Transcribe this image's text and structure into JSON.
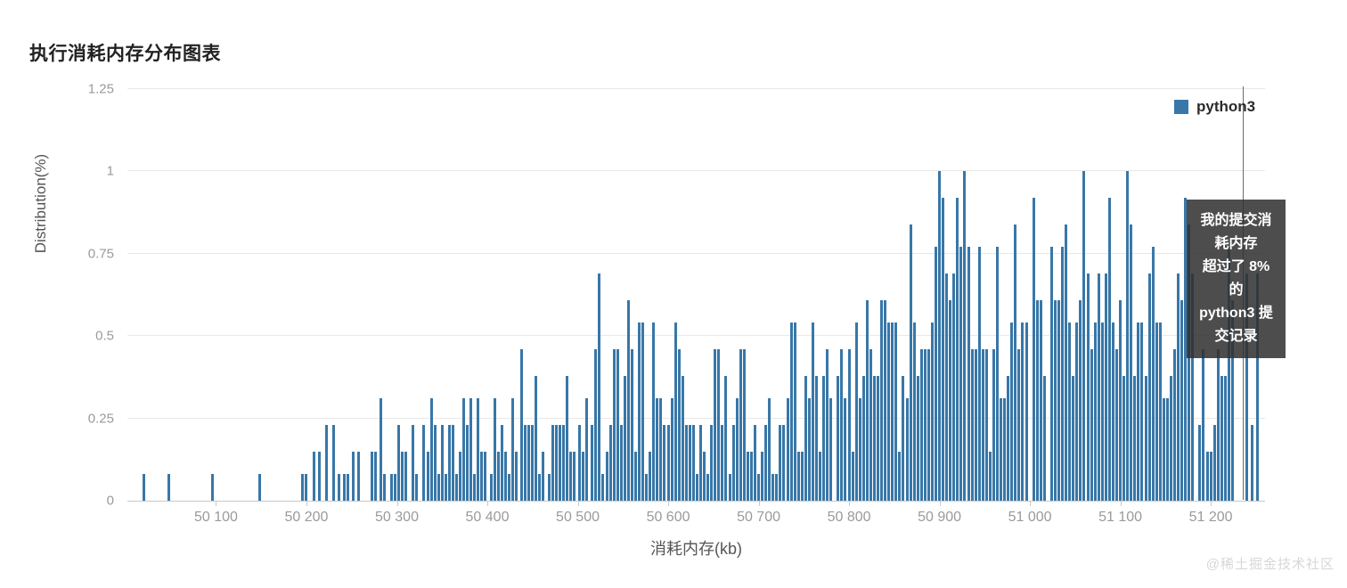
{
  "title": "执行消耗内存分布图表",
  "legend": {
    "label": "python3",
    "color": "#3877a8"
  },
  "tooltip": {
    "text": "我的提交消\n耗内存\n超过了 8%\n的\npython3 提\n交记录"
  },
  "watermark": "@稀土掘金技术社区",
  "chart_data": {
    "type": "bar",
    "title": "执行消耗内存分布图表",
    "xlabel": "消耗内存(kb)",
    "ylabel": "Distribution(%)",
    "series_name": "python3",
    "bar_color": "#3877a8",
    "grid": true,
    "legend_position": "top-right",
    "xlim": [
      50002,
      51260
    ],
    "ylim": [
      0,
      1.25
    ],
    "yticks": [
      0,
      0.25,
      0.5,
      0.75,
      1,
      1.25
    ],
    "ytick_labels": [
      "0",
      "0.25",
      "0.5",
      "0.75",
      "1",
      "1.25"
    ],
    "xticks": [
      {
        "value": 50100,
        "label": "50 100"
      },
      {
        "value": 50200,
        "label": "50 200"
      },
      {
        "value": 50300,
        "label": "50 300"
      },
      {
        "value": 50400,
        "label": "50 400"
      },
      {
        "value": 50500,
        "label": "50 500"
      },
      {
        "value": 50600,
        "label": "50 600"
      },
      {
        "value": 50700,
        "label": "50 700"
      },
      {
        "value": 50800,
        "label": "50 800"
      },
      {
        "value": 50900,
        "label": "50 900"
      },
      {
        "value": 51000,
        "label": "51 000"
      },
      {
        "value": 51100,
        "label": "51 100"
      },
      {
        "value": 51200,
        "label": "51 200"
      }
    ],
    "bars": [
      [
        50020,
        0.08
      ],
      [
        50048,
        0.08
      ],
      [
        50096,
        0.08
      ],
      [
        50148,
        0.08
      ],
      [
        50196,
        0.08
      ],
      [
        50200,
        0.08
      ],
      [
        50208,
        0.15
      ],
      [
        50214,
        0.15
      ],
      [
        50222,
        0.23
      ],
      [
        50230,
        0.23
      ],
      [
        50236,
        0.08
      ],
      [
        50242,
        0.08
      ],
      [
        50246,
        0.08
      ],
      [
        50252,
        0.15
      ],
      [
        50258,
        0.15
      ],
      [
        50272,
        0.15
      ],
      [
        50276,
        0.15
      ],
      [
        50282,
        0.31
      ],
      [
        50286,
        0.08
      ],
      [
        50294,
        0.08
      ],
      [
        50298,
        0.08
      ],
      [
        50302,
        0.23
      ],
      [
        50306,
        0.15
      ],
      [
        50310,
        0.15
      ],
      [
        50318,
        0.23
      ],
      [
        50322,
        0.08
      ],
      [
        50330,
        0.23
      ],
      [
        50334,
        0.15
      ],
      [
        50338,
        0.31
      ],
      [
        50342,
        0.23
      ],
      [
        50346,
        0.08
      ],
      [
        50350,
        0.23
      ],
      [
        50354,
        0.08
      ],
      [
        50358,
        0.23
      ],
      [
        50362,
        0.23
      ],
      [
        50366,
        0.08
      ],
      [
        50370,
        0.15
      ],
      [
        50374,
        0.31
      ],
      [
        50378,
        0.23
      ],
      [
        50382,
        0.31
      ],
      [
        50386,
        0.08
      ],
      [
        50390,
        0.31
      ],
      [
        50394,
        0.15
      ],
      [
        50398,
        0.15
      ],
      [
        50404,
        0.08
      ],
      [
        50408,
        0.31
      ],
      [
        50412,
        0.15
      ],
      [
        50416,
        0.23
      ],
      [
        50420,
        0.15
      ],
      [
        50424,
        0.08
      ],
      [
        50428,
        0.31
      ],
      [
        50432,
        0.15
      ],
      [
        50438,
        0.46
      ],
      [
        50442,
        0.23
      ],
      [
        50446,
        0.23
      ],
      [
        50450,
        0.23
      ],
      [
        50454,
        0.38
      ],
      [
        50458,
        0.08
      ],
      [
        50462,
        0.15
      ],
      [
        50468,
        0.08
      ],
      [
        50472,
        0.23
      ],
      [
        50476,
        0.23
      ],
      [
        50480,
        0.23
      ],
      [
        50484,
        0.23
      ],
      [
        50488,
        0.38
      ],
      [
        50492,
        0.15
      ],
      [
        50496,
        0.15
      ],
      [
        50502,
        0.23
      ],
      [
        50506,
        0.15
      ],
      [
        50510,
        0.31
      ],
      [
        50516,
        0.23
      ],
      [
        50520,
        0.46
      ],
      [
        50524,
        0.69
      ],
      [
        50528,
        0.08
      ],
      [
        50532,
        0.15
      ],
      [
        50536,
        0.23
      ],
      [
        50540,
        0.46
      ],
      [
        50544,
        0.46
      ],
      [
        50548,
        0.23
      ],
      [
        50552,
        0.38
      ],
      [
        50556,
        0.61
      ],
      [
        50560,
        0.46
      ],
      [
        50564,
        0.15
      ],
      [
        50568,
        0.54
      ],
      [
        50572,
        0.54
      ],
      [
        50576,
        0.08
      ],
      [
        50580,
        0.15
      ],
      [
        50584,
        0.54
      ],
      [
        50588,
        0.31
      ],
      [
        50592,
        0.31
      ],
      [
        50596,
        0.23
      ],
      [
        50600,
        0.23
      ],
      [
        50604,
        0.31
      ],
      [
        50608,
        0.54
      ],
      [
        50612,
        0.46
      ],
      [
        50616,
        0.38
      ],
      [
        50620,
        0.23
      ],
      [
        50624,
        0.23
      ],
      [
        50628,
        0.23
      ],
      [
        50632,
        0.08
      ],
      [
        50636,
        0.23
      ],
      [
        50640,
        0.15
      ],
      [
        50644,
        0.08
      ],
      [
        50648,
        0.23
      ],
      [
        50652,
        0.46
      ],
      [
        50656,
        0.46
      ],
      [
        50660,
        0.23
      ],
      [
        50664,
        0.38
      ],
      [
        50668,
        0.08
      ],
      [
        50672,
        0.23
      ],
      [
        50676,
        0.31
      ],
      [
        50680,
        0.46
      ],
      [
        50684,
        0.46
      ],
      [
        50688,
        0.15
      ],
      [
        50692,
        0.15
      ],
      [
        50696,
        0.23
      ],
      [
        50700,
        0.08
      ],
      [
        50704,
        0.15
      ],
      [
        50708,
        0.23
      ],
      [
        50712,
        0.31
      ],
      [
        50716,
        0.08
      ],
      [
        50720,
        0.08
      ],
      [
        50724,
        0.23
      ],
      [
        50728,
        0.23
      ],
      [
        50732,
        0.31
      ],
      [
        50736,
        0.54
      ],
      [
        50740,
        0.54
      ],
      [
        50744,
        0.15
      ],
      [
        50748,
        0.15
      ],
      [
        50752,
        0.38
      ],
      [
        50756,
        0.31
      ],
      [
        50760,
        0.54
      ],
      [
        50764,
        0.38
      ],
      [
        50768,
        0.15
      ],
      [
        50772,
        0.38
      ],
      [
        50776,
        0.46
      ],
      [
        50780,
        0.31
      ],
      [
        50788,
        0.38
      ],
      [
        50792,
        0.46
      ],
      [
        50796,
        0.31
      ],
      [
        50800,
        0.46
      ],
      [
        50804,
        0.15
      ],
      [
        50808,
        0.54
      ],
      [
        50812,
        0.31
      ],
      [
        50816,
        0.38
      ],
      [
        50820,
        0.61
      ],
      [
        50824,
        0.46
      ],
      [
        50828,
        0.38
      ],
      [
        50832,
        0.38
      ],
      [
        50836,
        0.61
      ],
      [
        50840,
        0.61
      ],
      [
        50844,
        0.54
      ],
      [
        50848,
        0.54
      ],
      [
        50852,
        0.54
      ],
      [
        50856,
        0.15
      ],
      [
        50860,
        0.38
      ],
      [
        50864,
        0.31
      ],
      [
        50868,
        0.84
      ],
      [
        50872,
        0.54
      ],
      [
        50876,
        0.38
      ],
      [
        50880,
        0.46
      ],
      [
        50884,
        0.46
      ],
      [
        50888,
        0.46
      ],
      [
        50892,
        0.54
      ],
      [
        50896,
        0.77
      ],
      [
        50900,
        1
      ],
      [
        50904,
        0.92
      ],
      [
        50908,
        0.69
      ],
      [
        50912,
        0.61
      ],
      [
        50916,
        0.69
      ],
      [
        50920,
        0.92
      ],
      [
        50924,
        0.77
      ],
      [
        50928,
        1
      ],
      [
        50932,
        0.77
      ],
      [
        50936,
        0.46
      ],
      [
        50940,
        0.46
      ],
      [
        50944,
        0.77
      ],
      [
        50948,
        0.46
      ],
      [
        50952,
        0.46
      ],
      [
        50956,
        0.15
      ],
      [
        50960,
        0.46
      ],
      [
        50964,
        0.77
      ],
      [
        50968,
        0.31
      ],
      [
        50972,
        0.31
      ],
      [
        50976,
        0.38
      ],
      [
        50980,
        0.54
      ],
      [
        50984,
        0.84
      ],
      [
        50988,
        0.46
      ],
      [
        50992,
        0.54
      ],
      [
        50996,
        0.54
      ],
      [
        51004,
        0.92
      ],
      [
        51008,
        0.61
      ],
      [
        51012,
        0.61
      ],
      [
        51016,
        0.38
      ],
      [
        51024,
        0.77
      ],
      [
        51028,
        0.61
      ],
      [
        51032,
        0.61
      ],
      [
        51036,
        0.77
      ],
      [
        51040,
        0.84
      ],
      [
        51044,
        0.54
      ],
      [
        51048,
        0.38
      ],
      [
        51052,
        0.54
      ],
      [
        51056,
        0.61
      ],
      [
        51060,
        1
      ],
      [
        51064,
        0.69
      ],
      [
        51068,
        0.46
      ],
      [
        51072,
        0.54
      ],
      [
        51076,
        0.69
      ],
      [
        51080,
        0.54
      ],
      [
        51084,
        0.69
      ],
      [
        51088,
        0.92
      ],
      [
        51092,
        0.54
      ],
      [
        51096,
        0.46
      ],
      [
        51100,
        0.61
      ],
      [
        51104,
        0.38
      ],
      [
        51108,
        1
      ],
      [
        51112,
        0.84
      ],
      [
        51116,
        0.38
      ],
      [
        51120,
        0.54
      ],
      [
        51124,
        0.54
      ],
      [
        51128,
        0.38
      ],
      [
        51132,
        0.69
      ],
      [
        51136,
        0.77
      ],
      [
        51140,
        0.54
      ],
      [
        51144,
        0.54
      ],
      [
        51148,
        0.31
      ],
      [
        51152,
        0.31
      ],
      [
        51156,
        0.38
      ],
      [
        51160,
        0.46
      ],
      [
        51164,
        0.69
      ],
      [
        51168,
        0.61
      ],
      [
        51172,
        0.92
      ],
      [
        51176,
        0.84
      ],
      [
        51180,
        0.69
      ],
      [
        51188,
        0.23
      ],
      [
        51192,
        0.46
      ],
      [
        51196,
        0.15
      ],
      [
        51200,
        0.15
      ],
      [
        51204,
        0.23
      ],
      [
        51208,
        0.46
      ],
      [
        51212,
        0.38
      ],
      [
        51216,
        0.38
      ],
      [
        51220,
        0.77
      ],
      [
        51224,
        0.61
      ],
      [
        51240,
        0.69
      ],
      [
        51246,
        0.23
      ],
      [
        51252,
        0.69
      ]
    ]
  }
}
